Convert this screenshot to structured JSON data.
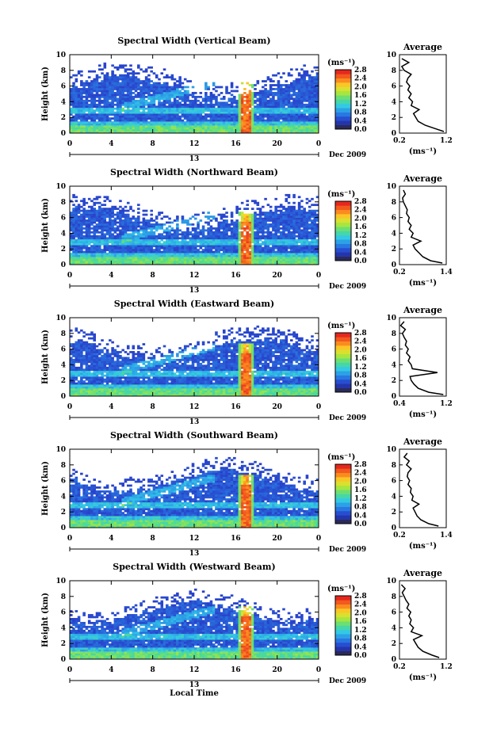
{
  "figure": {
    "xlabel": "Local Time",
    "day_marker": "13",
    "date_label": "Dec 2009"
  },
  "chart_data": [
    {
      "type": "heatmap",
      "title": "Spectral Width (Vertical Beam)",
      "ylabel": "Height (km)",
      "x_ticks": [
        "0",
        "4",
        "8",
        "12",
        "16",
        "20",
        "0"
      ],
      "y_ticks": [
        "0",
        "2",
        "4",
        "6",
        "8",
        "10"
      ],
      "xlim": [
        0,
        24
      ],
      "ylim": [
        0,
        10
      ],
      "colorbar": {
        "unit": "(ms⁻¹)",
        "ticks": [
          "0.0",
          "0.4",
          "0.8",
          "1.2",
          "1.6",
          "2.0",
          "2.4",
          "2.8"
        ],
        "range": [
          0,
          2.8
        ]
      },
      "profile": {
        "title": "Average",
        "xlabel": "(ms⁻¹)",
        "x_ticks": [
          "0.2",
          "1.2"
        ],
        "xlim": [
          0.2,
          1.2
        ],
        "y_ticks": [
          "0",
          "2",
          "4",
          "6",
          "8",
          "10"
        ],
        "heights": [
          0.2,
          0.5,
          1.0,
          1.5,
          2.0,
          2.5,
          3.0,
          3.5,
          4.0,
          4.5,
          5.0,
          5.5,
          6.0,
          6.5,
          7.0,
          7.5,
          8.0,
          8.5,
          9.0,
          9.5
        ],
        "values": [
          1.15,
          1.0,
          0.75,
          0.6,
          0.55,
          0.5,
          0.62,
          0.45,
          0.48,
          0.4,
          0.45,
          0.38,
          0.42,
          0.35,
          0.38,
          0.45,
          0.3,
          0.25,
          0.4,
          0.25
        ]
      }
    },
    {
      "type": "heatmap",
      "title": "Spectral Width (Northward Beam)",
      "ylabel": "Height (km)",
      "x_ticks": [
        "0",
        "4",
        "8",
        "12",
        "16",
        "20",
        "0"
      ],
      "y_ticks": [
        "0",
        "2",
        "4",
        "6",
        "8",
        "10"
      ],
      "xlim": [
        0,
        24
      ],
      "ylim": [
        0,
        10
      ],
      "colorbar": {
        "unit": "(ms⁻¹)",
        "ticks": [
          "0.0",
          "0.4",
          "0.8",
          "1.2",
          "1.6",
          "2.0",
          "2.4",
          "2.8"
        ],
        "range": [
          0,
          2.8
        ]
      },
      "profile": {
        "title": "Average",
        "xlabel": "(ms⁻¹)",
        "x_ticks": [
          "0.2",
          "1.4"
        ],
        "xlim": [
          0.2,
          1.4
        ],
        "y_ticks": [
          "0",
          "2",
          "4",
          "6",
          "8",
          "10"
        ],
        "heights": [
          0.2,
          0.5,
          1.0,
          1.5,
          2.0,
          2.5,
          3.0,
          3.5,
          4.0,
          4.5,
          5.0,
          5.5,
          6.0,
          6.5,
          7.0,
          7.5,
          8.0,
          8.5,
          9.0,
          9.5
        ],
        "values": [
          1.3,
          1.0,
          0.8,
          0.7,
          0.6,
          0.55,
          0.75,
          0.5,
          0.55,
          0.45,
          0.5,
          0.42,
          0.45,
          0.38,
          0.4,
          0.35,
          0.3,
          0.28,
          0.35,
          0.3
        ]
      }
    },
    {
      "type": "heatmap",
      "title": "Spectral Width (Eastward Beam)",
      "ylabel": "Height (km)",
      "x_ticks": [
        "0",
        "4",
        "8",
        "12",
        "16",
        "20",
        "0"
      ],
      "y_ticks": [
        "0",
        "2",
        "4",
        "6",
        "8",
        "10"
      ],
      "xlim": [
        0,
        24
      ],
      "ylim": [
        0,
        10
      ],
      "colorbar": {
        "unit": "(ms⁻¹)",
        "ticks": [
          "0.0",
          "0.4",
          "0.8",
          "1.2",
          "1.6",
          "2.0",
          "2.4",
          "2.8"
        ],
        "range": [
          0,
          2.8
        ]
      },
      "profile": {
        "title": "Average",
        "xlabel": "(ms⁻¹)",
        "x_ticks": [
          "0.4",
          "1.2"
        ],
        "xlim": [
          0.4,
          1.2
        ],
        "y_ticks": [
          "0",
          "2",
          "4",
          "6",
          "8",
          "10"
        ],
        "heights": [
          0.2,
          0.5,
          1.0,
          1.5,
          2.0,
          2.5,
          3.0,
          3.5,
          4.0,
          4.5,
          5.0,
          5.5,
          6.0,
          6.5,
          7.0,
          7.5,
          8.0,
          8.5,
          9.0,
          9.5
        ],
        "values": [
          1.15,
          0.9,
          0.72,
          0.65,
          0.6,
          0.58,
          1.05,
          0.62,
          0.6,
          0.55,
          0.58,
          0.52,
          0.55,
          0.5,
          0.52,
          0.48,
          0.45,
          0.5,
          0.42,
          0.48
        ]
      }
    },
    {
      "type": "heatmap",
      "title": "Spectral Width (Southward Beam)",
      "ylabel": "Height (km)",
      "x_ticks": [
        "0",
        "4",
        "8",
        "12",
        "16",
        "20",
        "0"
      ],
      "y_ticks": [
        "0",
        "2",
        "4",
        "6",
        "8",
        "10"
      ],
      "xlim": [
        0,
        24
      ],
      "ylim": [
        0,
        10
      ],
      "colorbar": {
        "unit": "(ms⁻¹)",
        "ticks": [
          "0.0",
          "0.4",
          "0.8",
          "1.2",
          "1.6",
          "2.0",
          "2.4",
          "2.8"
        ],
        "range": [
          0,
          2.8
        ]
      },
      "profile": {
        "title": "Average",
        "xlabel": "(ms⁻¹)",
        "x_ticks": [
          "0.2",
          "1.4"
        ],
        "xlim": [
          0.2,
          1.4
        ],
        "y_ticks": [
          "0",
          "2",
          "4",
          "6",
          "8",
          "10"
        ],
        "heights": [
          0.2,
          0.5,
          1.0,
          1.5,
          2.0,
          2.5,
          3.0,
          3.5,
          4.0,
          4.5,
          5.0,
          5.5,
          6.0,
          6.5,
          7.0,
          7.5,
          8.0,
          8.5,
          9.0,
          9.5
        ],
        "values": [
          1.2,
          0.95,
          0.75,
          0.65,
          0.6,
          0.55,
          0.7,
          0.52,
          0.55,
          0.48,
          0.5,
          0.42,
          0.46,
          0.4,
          0.42,
          0.5,
          0.38,
          0.45,
          0.32,
          0.4
        ]
      }
    },
    {
      "type": "heatmap",
      "title": "Spectral Width (Westward Beam)",
      "ylabel": "Height (km)",
      "x_ticks": [
        "0",
        "4",
        "8",
        "12",
        "16",
        "20",
        "0"
      ],
      "y_ticks": [
        "0",
        "2",
        "4",
        "6",
        "8",
        "10"
      ],
      "xlim": [
        0,
        24
      ],
      "ylim": [
        0,
        10
      ],
      "colorbar": {
        "unit": "(ms⁻¹)",
        "ticks": [
          "0.0",
          "0.4",
          "0.8",
          "1.2",
          "1.6",
          "2.0",
          "2.4",
          "2.8"
        ],
        "range": [
          0,
          2.8
        ]
      },
      "profile": {
        "title": "Average",
        "xlabel": "(ms⁻¹)",
        "x_ticks": [
          "0.2",
          "1.2"
        ],
        "xlim": [
          0.2,
          1.2
        ],
        "y_ticks": [
          "0",
          "2",
          "4",
          "6",
          "8",
          "10"
        ],
        "heights": [
          0.2,
          0.5,
          1.0,
          1.5,
          2.0,
          2.5,
          3.0,
          3.5,
          4.0,
          4.5,
          5.0,
          5.5,
          6.0,
          6.5,
          7.0,
          7.5,
          8.0,
          8.5,
          9.0,
          9.5
        ],
        "values": [
          1.05,
          0.9,
          0.7,
          0.6,
          0.55,
          0.5,
          0.68,
          0.45,
          0.5,
          0.42,
          0.45,
          0.4,
          0.44,
          0.36,
          0.4,
          0.34,
          0.3,
          0.26,
          0.32,
          0.24
        ]
      }
    }
  ]
}
